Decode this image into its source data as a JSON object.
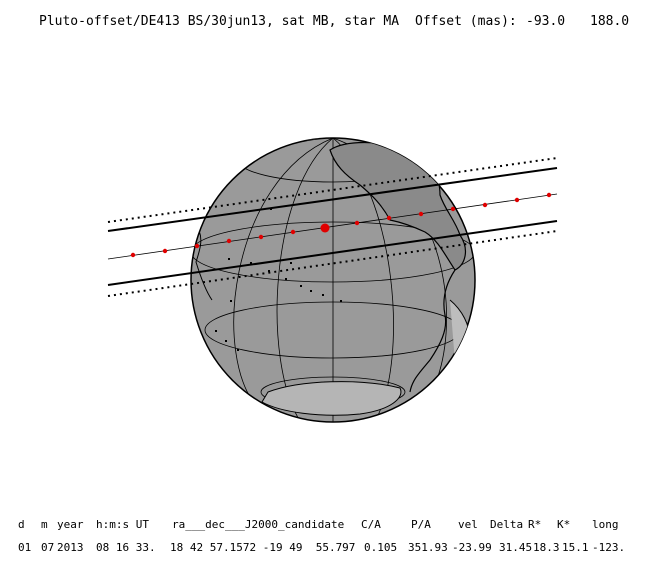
{
  "header": {
    "title": "Pluto-offset/DE413 BS/30jun13, sat MB, star MA",
    "offset_label": "Offset (mas):",
    "offset_x": "-93.0",
    "offset_y": "188.0"
  },
  "footer": {
    "labels": [
      "d",
      "m",
      "year",
      "h:m:s UT",
      "ra___dec___J2000_candidate",
      "C/A",
      "P/A",
      "vel",
      "Delta",
      "R*",
      "K*",
      "long"
    ],
    "values": [
      "01",
      "07",
      "2013",
      "08 16 33.",
      "18 42 57.1572 -19 49  55.797",
      "0.105",
      "351.93",
      "-23.99",
      "31.45",
      "18.3",
      "15.1",
      "-123."
    ]
  },
  "colors": {
    "ocean": "#9a9a9a",
    "night": "#c9c9c9",
    "land": "#9a9a9a",
    "coast": "#000000",
    "track": "#e00000"
  }
}
